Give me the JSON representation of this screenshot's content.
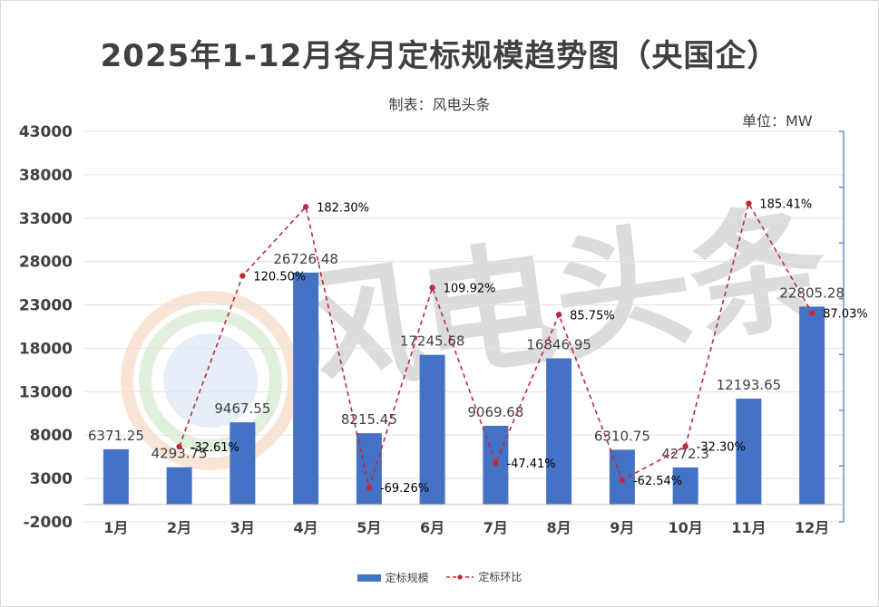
{
  "title": "2025年1-12月各月定标规模趋势图（央国企）",
  "subtitle": "制表：风电头条",
  "unit_label": "单位：MW",
  "watermark": "风电头条",
  "colors": {
    "bar": "#4472c4",
    "line": "#c0283c",
    "axis": "#4472c4"
  },
  "chart_data": {
    "type": "bar",
    "categories": [
      "1月",
      "2月",
      "3月",
      "4月",
      "5月",
      "6月",
      "7月",
      "8月",
      "9月",
      "10月",
      "11月",
      "12月"
    ],
    "series": [
      {
        "name": "定标规模",
        "type": "bar",
        "values": [
          6371.25,
          4293.75,
          9467.55,
          26726.48,
          8215.45,
          17245.68,
          9069.68,
          16846.95,
          6310.75,
          4272.3,
          12193.65,
          22805.28
        ],
        "labels": [
          "6371.25",
          "4293.75",
          "9467.55",
          "26726.48",
          "8215.45",
          "17245.68",
          "9069.68",
          "16846.95",
          "6310.75",
          "4272.3",
          "12193.65",
          "22805.28"
        ]
      },
      {
        "name": "定标环比",
        "type": "line",
        "values": [
          null,
          -32.61,
          120.5,
          182.3,
          -69.26,
          109.92,
          -47.41,
          85.75,
          -62.54,
          -32.3,
          185.41,
          87.03
        ],
        "labels": [
          "",
          "-32.61%",
          "120.50%",
          "182.30%",
          "-69.26%",
          "109.92%",
          "-47.41%",
          "85.75%",
          "-62.54%",
          "-32.30%",
          "185.41%",
          "87.03%"
        ]
      }
    ],
    "ylim": [
      -2000,
      43000
    ],
    "yticks": [
      -2000,
      3000,
      8000,
      13000,
      18000,
      23000,
      28000,
      33000,
      38000,
      43000
    ],
    "ytick_labels": [
      "-2000",
      "3000",
      "8000",
      "13000",
      "18000",
      "23000",
      "28000",
      "33000",
      "38000",
      "43000"
    ],
    "y2lim": [
      -100,
      250
    ],
    "grid": true,
    "legend_position": "bottom"
  }
}
